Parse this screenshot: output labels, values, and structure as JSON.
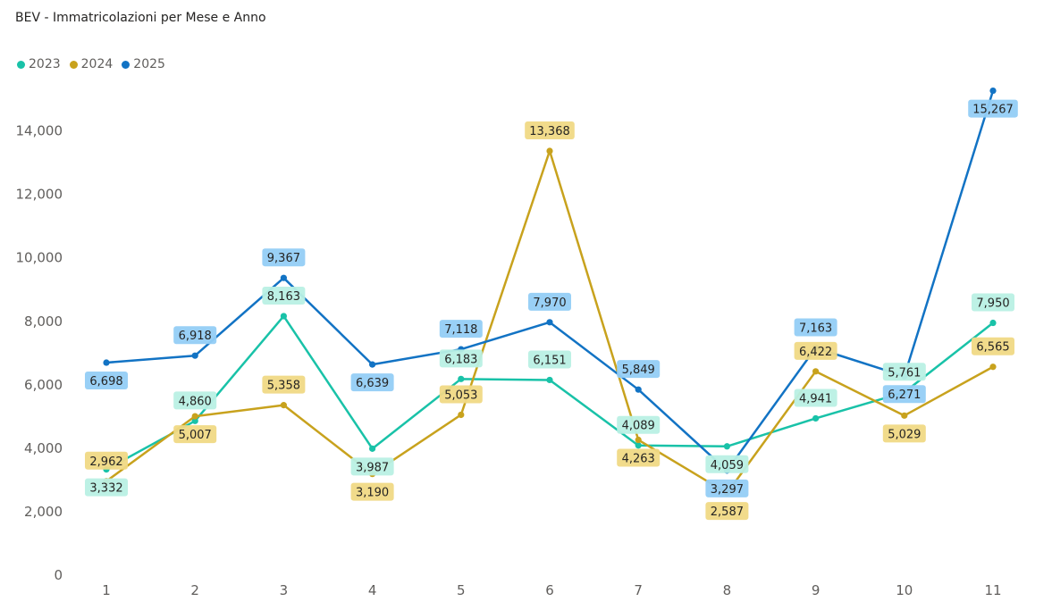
{
  "chart_data": {
    "type": "line",
    "title": "BEV - Immatricolazioni per Mese e Anno",
    "x": [
      "1",
      "2",
      "3",
      "4",
      "5",
      "6",
      "7",
      "8",
      "9",
      "10",
      "11"
    ],
    "ylim": [
      0,
      15267
    ],
    "yticks": [
      "0",
      "2,000",
      "4,000",
      "6,000",
      "8,000",
      "10,000",
      "12,000",
      "14,000"
    ],
    "ytick_values": [
      0,
      2000,
      4000,
      6000,
      8000,
      10000,
      12000,
      14000
    ],
    "grid": false,
    "legend": "top-left",
    "series": [
      {
        "name": "2023",
        "color": "#19c2a8",
        "label_bg": "#b9f0e4",
        "values": [
          3332,
          4860,
          8163,
          3987,
          6183,
          6151,
          4089,
          4059,
          4941,
          5761,
          7950
        ],
        "labels": [
          "3,332",
          "4,860",
          "8,163",
          "3,987",
          "6,183",
          "6,151",
          "4,089",
          "4,059",
          "4,941",
          "5,761",
          "7,950"
        ]
      },
      {
        "name": "2024",
        "color": "#c8a21d",
        "label_bg": "#f0d985",
        "values": [
          2962,
          5007,
          5358,
          3190,
          5053,
          13368,
          4263,
          2587,
          6422,
          5029,
          6565
        ],
        "labels": [
          "2,962",
          "5,007",
          "5,358",
          "3,190",
          "5,053",
          "13,368",
          "4,263",
          "2,587",
          "6,422",
          "5,029",
          "6,565"
        ]
      },
      {
        "name": "2025",
        "color": "#1273c4",
        "label_bg": "#93cdf5",
        "values": [
          6698,
          6918,
          9367,
          6639,
          7118,
          7970,
          5849,
          3297,
          7163,
          6271,
          15267
        ],
        "labels": [
          "6,698",
          "6,918",
          "9,367",
          "6,639",
          "7,118",
          "7,970",
          "5,849",
          "3,297",
          "7,163",
          "6,271",
          "15,267"
        ]
      }
    ]
  }
}
